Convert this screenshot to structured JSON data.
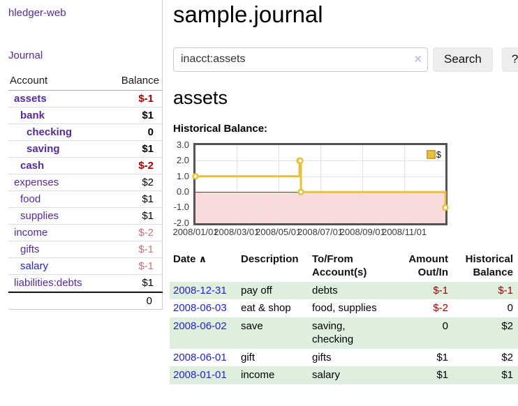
{
  "app": {
    "title": "hledger-web"
  },
  "sidebar": {
    "journal_link": "Journal",
    "account_header": "Account",
    "balance_header": "Balance",
    "accounts": [
      {
        "name": "assets",
        "depth": 1,
        "bold": true,
        "balance": "$-1",
        "balance_color": "dark-red",
        "link_color": "purple"
      },
      {
        "name": "bank",
        "depth": 2,
        "bold": true,
        "balance": "$1",
        "balance_color": "black",
        "link_color": "purple"
      },
      {
        "name": "checking",
        "depth": 3,
        "bold": true,
        "balance": "0",
        "balance_color": "black",
        "link_color": "purple"
      },
      {
        "name": "saving",
        "depth": 3,
        "bold": true,
        "balance": "$1",
        "balance_color": "black",
        "link_color": "purple"
      },
      {
        "name": "cash",
        "depth": 2,
        "bold": true,
        "balance": "$-2",
        "balance_color": "dark-red",
        "link_color": "purple"
      },
      {
        "name": "expenses",
        "depth": 1,
        "bold": false,
        "balance": "$2",
        "balance_color": "black",
        "link_color": "purple"
      },
      {
        "name": "food",
        "depth": 2,
        "bold": false,
        "balance": "$1",
        "balance_color": "black",
        "link_color": "purple"
      },
      {
        "name": "supplies",
        "depth": 2,
        "bold": false,
        "balance": "$1",
        "balance_color": "black",
        "link_color": "purple"
      },
      {
        "name": "income",
        "depth": 1,
        "bold": false,
        "balance": "$-2",
        "balance_color": "faded-red",
        "link_color": "purple"
      },
      {
        "name": "gifts",
        "depth": 2,
        "bold": false,
        "balance": "$-1",
        "balance_color": "faded-red",
        "link_color": "purple"
      },
      {
        "name": "salary",
        "depth": 2,
        "bold": false,
        "balance": "$-1",
        "balance_color": "faded-red",
        "link_color": "blue"
      },
      {
        "name": "liabilities:debts",
        "depth": 1,
        "bold": false,
        "balance": "$1",
        "balance_color": "black",
        "link_color": "purple"
      }
    ],
    "total": "0"
  },
  "main": {
    "title": "sample.journal",
    "search": {
      "value": "inacct:assets",
      "clear_icon": "×",
      "button": "Search",
      "help_button": "?"
    },
    "account_heading": "assets",
    "chart_heading": "Historical Balance:"
  },
  "chart_data": {
    "type": "line",
    "step": true,
    "title": "Historical Balance:",
    "x_range": [
      "2008-01-01",
      "2008-12-31"
    ],
    "ylim": [
      -2,
      3
    ],
    "series": [
      {
        "name": "$",
        "color": "#e9bf3c",
        "points": [
          [
            "2008-01-01",
            1
          ],
          [
            "2008-06-01",
            2
          ],
          [
            "2008-06-02",
            2
          ],
          [
            "2008-06-03",
            0
          ],
          [
            "2008-12-31",
            -1
          ]
        ]
      }
    ],
    "y_ticks": [
      "3.0",
      "2.0",
      "1.0",
      "0.0",
      "-1.0",
      "-2.0"
    ],
    "x_ticks": [
      {
        "label": "2008/01/01",
        "date": "2008-01-01"
      },
      {
        "label": "2008/03/01",
        "date": "2008-03-01"
      },
      {
        "label": "2008/05/01",
        "date": "2008-05-01"
      },
      {
        "label": "2008/07/01",
        "date": "2008-07-01"
      },
      {
        "label": "2008/09/01",
        "date": "2008-09-01"
      },
      {
        "label": "2008/11/01",
        "date": "2008-11-01"
      }
    ],
    "legend": {
      "label": "$",
      "position": "top-right"
    },
    "grid": true,
    "negative_region_color": "#fadbdb",
    "zero_line_color": "#aa2222"
  },
  "register": {
    "columns": {
      "date": "Date",
      "sort_icon": "∧",
      "description": "Description",
      "accounts": "To/From Account(s)",
      "amount": "Amount Out/In",
      "balance": "Historical Balance"
    },
    "rows": [
      {
        "date": "2008-12-31",
        "description": "pay off",
        "accounts": "debts",
        "amount": "$-1",
        "amount_negative": true,
        "balance": "$-1",
        "balance_negative": true
      },
      {
        "date": "2008-06-03",
        "description": "eat & shop",
        "accounts": "food, supplies",
        "amount": "$-2",
        "amount_negative": true,
        "balance": "0",
        "balance_negative": false
      },
      {
        "date": "2008-06-02",
        "description": "save",
        "accounts": "saving, checking",
        "amount": "0",
        "amount_negative": false,
        "balance": "$2",
        "balance_negative": false
      },
      {
        "date": "2008-06-01",
        "description": "gift",
        "accounts": "gifts",
        "amount": "$1",
        "amount_negative": false,
        "balance": "$2",
        "balance_negative": false
      },
      {
        "date": "2008-01-01",
        "description": "income",
        "accounts": "salary",
        "amount": "$1",
        "amount_negative": false,
        "balance": "$1",
        "balance_negative": false
      }
    ]
  }
}
